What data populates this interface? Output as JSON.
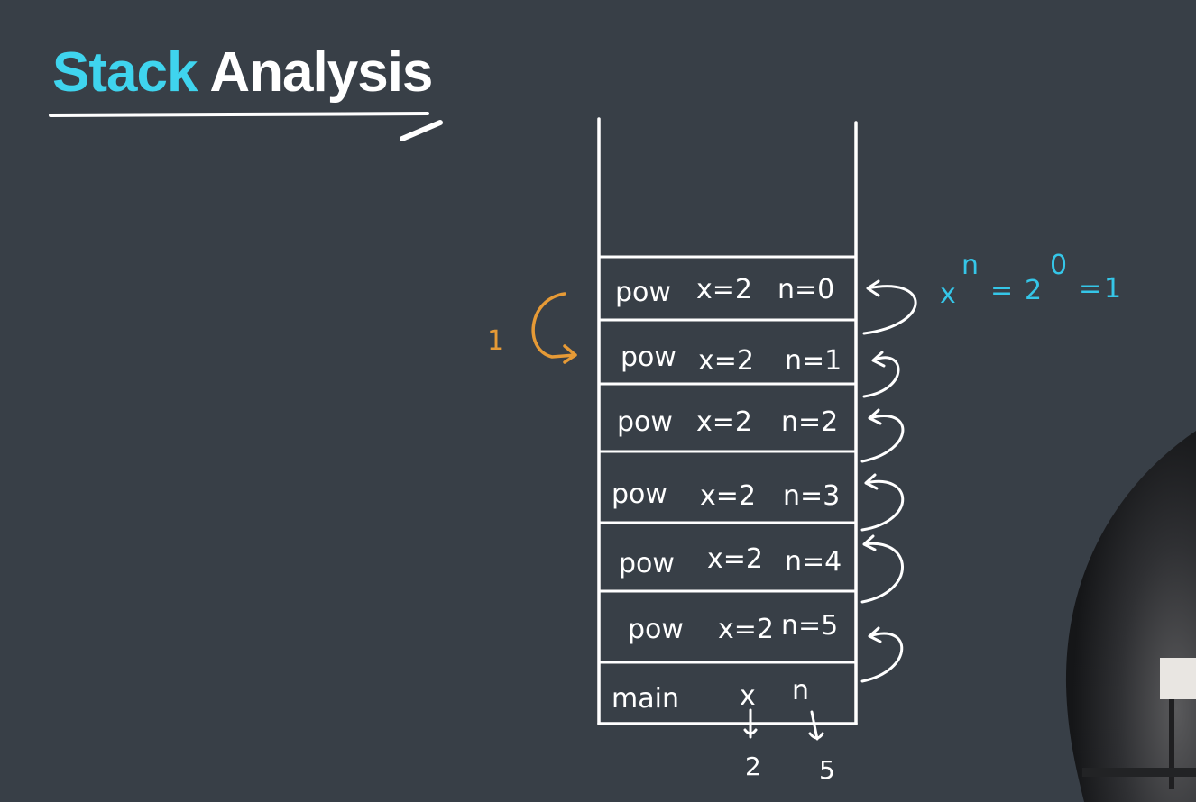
{
  "title": {
    "accent": "Stack",
    "main": "Analysis"
  },
  "colors": {
    "background": "#383f47",
    "title_accent": "#3fd4ee",
    "chalk": "#ffffff",
    "formula": "#35c6e8",
    "return_note": "#e69a36"
  },
  "frames": [
    {
      "fn": "pow",
      "x": "x=2",
      "n": "n=0"
    },
    {
      "fn": "pow",
      "x": "x=2",
      "n": "n=1"
    },
    {
      "fn": "pow",
      "x": "x=2",
      "n": "n=2"
    },
    {
      "fn": "pow",
      "x": "x=2",
      "n": "n=3"
    },
    {
      "fn": "pow",
      "x": "x=2",
      "n": "n=4"
    },
    {
      "fn": "pow",
      "x": "x=2",
      "n": "n=5"
    }
  ],
  "main_frame": {
    "fn": "main",
    "x_label": "x",
    "n_label": "n",
    "x_value": "2",
    "n_value": "5"
  },
  "formula": {
    "base": "x",
    "exp": "n",
    "eq1": "=",
    "val_base": "2",
    "val_exp": "0",
    "eq2": "=",
    "result": "1"
  },
  "return_note": {
    "value": "1"
  }
}
